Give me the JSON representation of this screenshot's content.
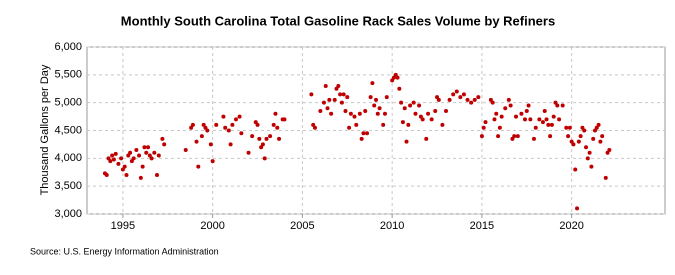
{
  "chart_data": {
    "type": "scatter",
    "title": "Monthly South Carolina Total Gasoline Rack Sales Volume by Refiners",
    "y_label": "Thousand Gallons per Day",
    "source": "Source: U.S. Energy Information Administration",
    "color": "#c00000",
    "grid": true,
    "xlim": [
      1993,
      2025.2
    ],
    "xticks": [
      1995,
      2000,
      2005,
      2010,
      2015,
      2020
    ],
    "ylim": [
      3000,
      6000
    ],
    "yticks": [
      {
        "value": 3000,
        "label": "3,000"
      },
      {
        "value": 3500,
        "label": "3,500"
      },
      {
        "value": 4000,
        "label": "4,000"
      },
      {
        "value": 4500,
        "label": "4,500"
      },
      {
        "value": 5000,
        "label": "5,000"
      },
      {
        "value": 5500,
        "label": "5,500"
      },
      {
        "value": 6000,
        "label": "6,000"
      }
    ],
    "x": [
      1994.0,
      1994.1,
      1994.2,
      1994.3,
      1994.4,
      1994.5,
      1994.6,
      1994.75,
      1994.9,
      1995.0,
      1995.1,
      1995.2,
      1995.3,
      1995.4,
      1995.5,
      1995.6,
      1995.75,
      1995.9,
      1996.0,
      1996.1,
      1996.2,
      1996.3,
      1996.4,
      1996.5,
      1996.6,
      1996.75,
      1996.9,
      1997.0,
      1997.2,
      1997.3,
      1998.5,
      1998.8,
      1998.9,
      1999.1,
      1999.2,
      1999.4,
      1999.5,
      1999.6,
      1999.7,
      1999.9,
      2000.0,
      2000.2,
      2000.6,
      2000.7,
      2000.9,
      2001.0,
      2001.1,
      2001.3,
      2001.5,
      2001.6,
      2002.0,
      2002.2,
      2002.4,
      2002.5,
      2002.6,
      2002.7,
      2002.8,
      2002.9,
      2003.0,
      2003.2,
      2003.4,
      2003.5,
      2003.6,
      2003.7,
      2003.9,
      2004.0,
      2005.5,
      2005.6,
      2005.7,
      2006.0,
      2006.2,
      2006.3,
      2006.4,
      2006.5,
      2006.6,
      2006.8,
      2006.9,
      2007.0,
      2007.1,
      2007.2,
      2007.3,
      2007.4,
      2007.5,
      2007.6,
      2007.7,
      2007.9,
      2008.0,
      2008.2,
      2008.3,
      2008.4,
      2008.5,
      2008.6,
      2008.8,
      2008.9,
      2009.0,
      2009.1,
      2009.2,
      2009.3,
      2009.5,
      2009.6,
      2009.7,
      2010.0,
      2010.1,
      2010.2,
      2010.3,
      2010.4,
      2010.5,
      2010.6,
      2010.7,
      2010.8,
      2010.9,
      2011.0,
      2011.2,
      2011.3,
      2011.5,
      2011.6,
      2011.7,
      2011.9,
      2012.0,
      2012.2,
      2012.4,
      2012.5,
      2012.6,
      2012.8,
      2013.0,
      2013.2,
      2013.4,
      2013.6,
      2013.8,
      2014.0,
      2014.2,
      2014.4,
      2014.6,
      2014.8,
      2015.0,
      2015.1,
      2015.2,
      2015.5,
      2015.6,
      2015.7,
      2015.8,
      2015.9,
      2016.0,
      2016.1,
      2016.3,
      2016.5,
      2016.6,
      2016.7,
      2016.8,
      2016.9,
      2017.0,
      2017.2,
      2017.4,
      2017.5,
      2017.6,
      2017.7,
      2017.9,
      2018.0,
      2018.2,
      2018.4,
      2018.5,
      2018.6,
      2018.7,
      2018.8,
      2018.9,
      2019.0,
      2019.1,
      2019.2,
      2019.3,
      2019.5,
      2019.7,
      2019.8,
      2019.9,
      2020.0,
      2020.1,
      2020.2,
      2020.3,
      2020.4,
      2020.5,
      2020.6,
      2020.7,
      2020.8,
      2020.9,
      2021.0,
      2021.1,
      2021.2,
      2021.3,
      2021.4,
      2021.5,
      2021.6,
      2021.7,
      2021.9,
      2022.0,
      2022.1
    ],
    "values": [
      3730,
      3700,
      4000,
      3950,
      4050,
      3980,
      4080,
      3900,
      4000,
      3800,
      3850,
      3700,
      4050,
      4100,
      3950,
      4000,
      4150,
      4050,
      3650,
      3850,
      4200,
      4100,
      4200,
      4050,
      4000,
      4100,
      3700,
      4050,
      4350,
      4250,
      4150,
      4550,
      4600,
      4300,
      3850,
      4400,
      4600,
      4550,
      4500,
      4250,
      3950,
      4600,
      4750,
      4550,
      4500,
      4250,
      4600,
      4700,
      4750,
      4450,
      4100,
      4400,
      4650,
      4600,
      4350,
      4200,
      4250,
      4000,
      4350,
      4400,
      4600,
      4800,
      4550,
      4350,
      4700,
      4700,
      5150,
      4600,
      4550,
      4850,
      5000,
      5300,
      4900,
      5050,
      4800,
      5050,
      5250,
      5300,
      5150,
      5000,
      5150,
      4850,
      5100,
      4550,
      4800,
      4750,
      4600,
      4800,
      4350,
      4450,
      4850,
      4450,
      5100,
      5350,
      4950,
      5050,
      4800,
      4900,
      4600,
      4800,
      5100,
      5400,
      5450,
      5500,
      5450,
      5250,
      5000,
      4650,
      4900,
      4300,
      4600,
      4950,
      5000,
      4800,
      4950,
      4750,
      4700,
      4350,
      4800,
      4700,
      4850,
      5100,
      5050,
      4600,
      4850,
      5050,
      5150,
      5200,
      5100,
      5150,
      5050,
      5000,
      5050,
      5100,
      4400,
      4550,
      4650,
      5050,
      5000,
      4700,
      4800,
      4400,
      4550,
      4750,
      4900,
      5050,
      4950,
      4350,
      4400,
      4750,
      4400,
      4800,
      4700,
      4850,
      4950,
      4700,
      4350,
      4550,
      4700,
      4650,
      4850,
      4700,
      4600,
      4400,
      4600,
      4750,
      5000,
      4950,
      4700,
      4950,
      4550,
      4400,
      4550,
      4300,
      4250,
      3800,
      3100,
      4300,
      4400,
      4550,
      4500,
      4200,
      4000,
      4100,
      3850,
      4350,
      4500,
      4550,
      4600,
      4300,
      4400,
      3650,
      4100,
      4150
    ]
  }
}
